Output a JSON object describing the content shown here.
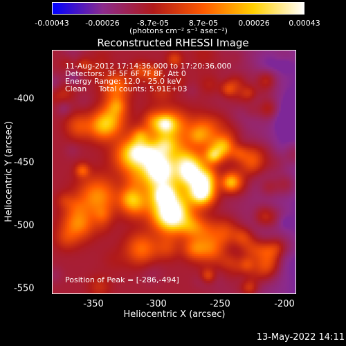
{
  "colorbar": {
    "tick_labels": [
      "-0.00043",
      "-0.00026",
      "-8.7e-05",
      "8.7e-05",
      "0.00026",
      "0.00043"
    ],
    "unit": "(photons cm⁻² s⁻¹ asec⁻²)"
  },
  "plot": {
    "title": "Reconstructed RHESSI Image",
    "annotation": {
      "time_range": "11-Aug-2012 17:14:36.000 to 17:20:36.000",
      "detectors": "Detectors: 3F 5F 6F 7F 8F, Att 0",
      "energy": "Energy Range: 12.0 - 25.0 keV",
      "clean": "Clean     Total counts: 5.91E+03"
    },
    "peak_label": "Position of Peak = [-286,-494]",
    "xlabel": "Heliocentric X (arcsec)",
    "ylabel": "Heliocentric Y (arcsec)",
    "xticks": [
      "-350",
      "-300",
      "-250",
      "-200"
    ],
    "yticks": [
      "-400",
      "-450",
      "-500",
      "-550"
    ]
  },
  "footer": {
    "timestamp": "13-May-2022 14:11"
  },
  "chart_data": {
    "type": "heatmap",
    "title": "Reconstructed RHESSI Image",
    "xlabel": "Heliocentric X (arcsec)",
    "ylabel": "Heliocentric Y (arcsec)",
    "xlim": [
      -380,
      -187
    ],
    "ylim": [
      -555,
      -368
    ],
    "color_range": [
      -0.00043,
      0.00043
    ],
    "colormap": [
      "#0000ff",
      "#8c2b8c",
      "#b01a1a",
      "#ff5a00",
      "#ffd000",
      "#ffffff"
    ],
    "peak": [
      -286,
      -494
    ]
  }
}
